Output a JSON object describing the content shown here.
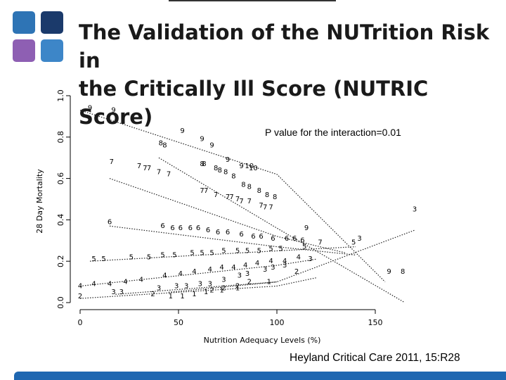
{
  "slide": {
    "title_line1": "The Validation of the NUTrition Risk in",
    "title_line2": "the Critically Ill Score (NUTRIC Score)",
    "citation": "Heyland Critical Care 2011, 15:R28",
    "logo_colors": [
      "#2e74b5",
      "#1b3a6b",
      "#8e5fb3",
      "#3d86c8"
    ],
    "bottom_bar_color": "#1f67b1"
  },
  "chart_data": {
    "type": "line",
    "xlabel": "Nutrition Adequacy Levels (%)",
    "ylabel": "28 Day Mortality",
    "annotation": "P value for the interaction=0.01",
    "xlim": [
      0,
      165
    ],
    "ylim": [
      0.0,
      1.0
    ],
    "xticks": [
      0,
      50,
      100,
      150
    ],
    "yticks": [
      0.0,
      0.2,
      0.4,
      0.6,
      0.8,
      1.0
    ],
    "grid": false,
    "series": [
      {
        "name": "9",
        "x": [
          0,
          100,
          155
        ],
        "y": [
          0.93,
          0.62,
          0.1
        ]
      },
      {
        "name": "8",
        "x": [
          40,
          100,
          165
        ],
        "y": [
          0.7,
          0.36,
          0.0
        ]
      },
      {
        "name": "7",
        "x": [
          15,
          100,
          135
        ],
        "y": [
          0.6,
          0.32,
          0.24
        ]
      },
      {
        "name": "6",
        "x": [
          15,
          100,
          140
        ],
        "y": [
          0.37,
          0.27,
          0.23
        ]
      },
      {
        "name": "5",
        "x": [
          5,
          100,
          140
        ],
        "y": [
          0.2,
          0.25,
          0.27
        ]
      },
      {
        "name": "4",
        "x": [
          0,
          100,
          120
        ],
        "y": [
          0.08,
          0.18,
          0.21
        ]
      },
      {
        "name": "3",
        "x": [
          18,
          100,
          170
        ],
        "y": [
          0.04,
          0.1,
          0.35
        ]
      },
      {
        "name": "2",
        "x": [
          0,
          100,
          120
        ],
        "y": [
          0.02,
          0.08,
          0.12
        ]
      },
      {
        "name": "1",
        "x": [
          45,
          100
        ],
        "y": [
          0.05,
          0.1
        ]
      }
    ],
    "point_labels": [
      {
        "t": "9",
        "x": 5,
        "y": 0.93
      },
      {
        "t": "9",
        "x": 17,
        "y": 0.92
      },
      {
        "t": "9",
        "x": 52,
        "y": 0.82
      },
      {
        "t": "9",
        "x": 62,
        "y": 0.78
      },
      {
        "t": "9",
        "x": 67,
        "y": 0.75
      },
      {
        "t": "9",
        "x": 75,
        "y": 0.68
      },
      {
        "t": "9",
        "x": 82,
        "y": 0.65
      },
      {
        "t": "9",
        "x": 115,
        "y": 0.35
      },
      {
        "t": "9",
        "x": 157,
        "y": 0.14
      },
      {
        "t": "8",
        "x": 41,
        "y": 0.76
      },
      {
        "t": "8",
        "x": 43,
        "y": 0.75
      },
      {
        "t": "8",
        "x": 62,
        "y": 0.66
      },
      {
        "t": "8",
        "x": 63,
        "y": 0.66
      },
      {
        "t": "8",
        "x": 69,
        "y": 0.64
      },
      {
        "t": "8",
        "x": 71,
        "y": 0.63
      },
      {
        "t": "8",
        "x": 74,
        "y": 0.62
      },
      {
        "t": "8",
        "x": 78,
        "y": 0.6
      },
      {
        "t": "8",
        "x": 83,
        "y": 0.56
      },
      {
        "t": "8",
        "x": 86,
        "y": 0.55
      },
      {
        "t": "8",
        "x": 91,
        "y": 0.53
      },
      {
        "t": "8",
        "x": 95,
        "y": 0.51
      },
      {
        "t": "8",
        "x": 99,
        "y": 0.5
      },
      {
        "t": "8",
        "x": 164,
        "y": 0.14
      },
      {
        "t": "10",
        "x": 86,
        "y": 0.65
      },
      {
        "t": "10",
        "x": 88,
        "y": 0.64
      },
      {
        "t": "7",
        "x": 16,
        "y": 0.67
      },
      {
        "t": "7",
        "x": 30,
        "y": 0.65
      },
      {
        "t": "7",
        "x": 33,
        "y": 0.64
      },
      {
        "t": "7",
        "x": 35,
        "y": 0.64
      },
      {
        "t": "7",
        "x": 40,
        "y": 0.62
      },
      {
        "t": "7",
        "x": 45,
        "y": 0.61
      },
      {
        "t": "7",
        "x": 62,
        "y": 0.53
      },
      {
        "t": "7",
        "x": 64,
        "y": 0.53
      },
      {
        "t": "7",
        "x": 69,
        "y": 0.51
      },
      {
        "t": "7",
        "x": 75,
        "y": 0.5
      },
      {
        "t": "7",
        "x": 77,
        "y": 0.5
      },
      {
        "t": "7",
        "x": 80,
        "y": 0.49
      },
      {
        "t": "7",
        "x": 82,
        "y": 0.48
      },
      {
        "t": "7",
        "x": 86,
        "y": 0.48
      },
      {
        "t": "7",
        "x": 92,
        "y": 0.46
      },
      {
        "t": "7",
        "x": 94,
        "y": 0.45
      },
      {
        "t": "7",
        "x": 97,
        "y": 0.45
      },
      {
        "t": "7",
        "x": 122,
        "y": 0.28
      },
      {
        "t": "6",
        "x": 15,
        "y": 0.38
      },
      {
        "t": "6",
        "x": 42,
        "y": 0.36
      },
      {
        "t": "6",
        "x": 47,
        "y": 0.35
      },
      {
        "t": "6",
        "x": 51,
        "y": 0.35
      },
      {
        "t": "6",
        "x": 56,
        "y": 0.35
      },
      {
        "t": "6",
        "x": 60,
        "y": 0.35
      },
      {
        "t": "6",
        "x": 65,
        "y": 0.34
      },
      {
        "t": "6",
        "x": 70,
        "y": 0.33
      },
      {
        "t": "6",
        "x": 75,
        "y": 0.33
      },
      {
        "t": "6",
        "x": 82,
        "y": 0.32
      },
      {
        "t": "6",
        "x": 88,
        "y": 0.31
      },
      {
        "t": "6",
        "x": 92,
        "y": 0.31
      },
      {
        "t": "6",
        "x": 98,
        "y": 0.3
      },
      {
        "t": "6",
        "x": 105,
        "y": 0.3
      },
      {
        "t": "6",
        "x": 109,
        "y": 0.3
      },
      {
        "t": "6",
        "x": 113,
        "y": 0.29
      },
      {
        "t": "5",
        "x": 7,
        "y": 0.2
      },
      {
        "t": "5",
        "x": 12,
        "y": 0.2
      },
      {
        "t": "5",
        "x": 26,
        "y": 0.21
      },
      {
        "t": "5",
        "x": 35,
        "y": 0.21
      },
      {
        "t": "5",
        "x": 42,
        "y": 0.22
      },
      {
        "t": "5",
        "x": 48,
        "y": 0.22
      },
      {
        "t": "5",
        "x": 57,
        "y": 0.23
      },
      {
        "t": "5",
        "x": 62,
        "y": 0.23
      },
      {
        "t": "5",
        "x": 67,
        "y": 0.23
      },
      {
        "t": "5",
        "x": 73,
        "y": 0.24
      },
      {
        "t": "5",
        "x": 80,
        "y": 0.24
      },
      {
        "t": "5",
        "x": 85,
        "y": 0.24
      },
      {
        "t": "5",
        "x": 91,
        "y": 0.24
      },
      {
        "t": "5",
        "x": 97,
        "y": 0.25
      },
      {
        "t": "5",
        "x": 102,
        "y": 0.25
      },
      {
        "t": "5",
        "x": 114,
        "y": 0.26
      },
      {
        "t": "5",
        "x": 139,
        "y": 0.28
      },
      {
        "t": "4",
        "x": 0,
        "y": 0.07
      },
      {
        "t": "4",
        "x": 7,
        "y": 0.08
      },
      {
        "t": "4",
        "x": 15,
        "y": 0.08
      },
      {
        "t": "4",
        "x": 23,
        "y": 0.09
      },
      {
        "t": "4",
        "x": 31,
        "y": 0.1
      },
      {
        "t": "4",
        "x": 43,
        "y": 0.12
      },
      {
        "t": "4",
        "x": 51,
        "y": 0.13
      },
      {
        "t": "4",
        "x": 58,
        "y": 0.14
      },
      {
        "t": "4",
        "x": 66,
        "y": 0.15
      },
      {
        "t": "4",
        "x": 72,
        "y": 0.16
      },
      {
        "t": "4",
        "x": 78,
        "y": 0.16
      },
      {
        "t": "4",
        "x": 84,
        "y": 0.17
      },
      {
        "t": "4",
        "x": 90,
        "y": 0.18
      },
      {
        "t": "4",
        "x": 97,
        "y": 0.19
      },
      {
        "t": "4",
        "x": 104,
        "y": 0.19
      },
      {
        "t": "4",
        "x": 111,
        "y": 0.21
      },
      {
        "t": "3",
        "x": 17,
        "y": 0.04
      },
      {
        "t": "3",
        "x": 21,
        "y": 0.04
      },
      {
        "t": "3",
        "x": 40,
        "y": 0.06
      },
      {
        "t": "3",
        "x": 49,
        "y": 0.07
      },
      {
        "t": "3",
        "x": 54,
        "y": 0.07
      },
      {
        "t": "3",
        "x": 61,
        "y": 0.08
      },
      {
        "t": "3",
        "x": 66,
        "y": 0.08
      },
      {
        "t": "3",
        "x": 73,
        "y": 0.1
      },
      {
        "t": "3",
        "x": 81,
        "y": 0.12
      },
      {
        "t": "3",
        "x": 85,
        "y": 0.13
      },
      {
        "t": "3",
        "x": 94,
        "y": 0.15
      },
      {
        "t": "3",
        "x": 98,
        "y": 0.16
      },
      {
        "t": "3",
        "x": 104,
        "y": 0.17
      },
      {
        "t": "3",
        "x": 117,
        "y": 0.2
      },
      {
        "t": "3",
        "x": 142,
        "y": 0.3
      },
      {
        "t": "3",
        "x": 170,
        "y": 0.44
      },
      {
        "t": "2",
        "x": 0,
        "y": 0.02
      },
      {
        "t": "2",
        "x": 37,
        "y": 0.03
      },
      {
        "t": "2",
        "x": 67,
        "y": 0.05
      },
      {
        "t": "2",
        "x": 73,
        "y": 0.06
      },
      {
        "t": "2",
        "x": 80,
        "y": 0.07
      },
      {
        "t": "2",
        "x": 86,
        "y": 0.09
      },
      {
        "t": "2",
        "x": 110,
        "y": 0.14
      },
      {
        "t": "1",
        "x": 46,
        "y": 0.02
      },
      {
        "t": "1",
        "x": 52,
        "y": 0.02
      },
      {
        "t": "1",
        "x": 58,
        "y": 0.03
      },
      {
        "t": "1",
        "x": 64,
        "y": 0.04
      },
      {
        "t": "1",
        "x": 72,
        "y": 0.05
      },
      {
        "t": "1",
        "x": 80,
        "y": 0.06
      },
      {
        "t": "1",
        "x": 96,
        "y": 0.09
      }
    ]
  }
}
